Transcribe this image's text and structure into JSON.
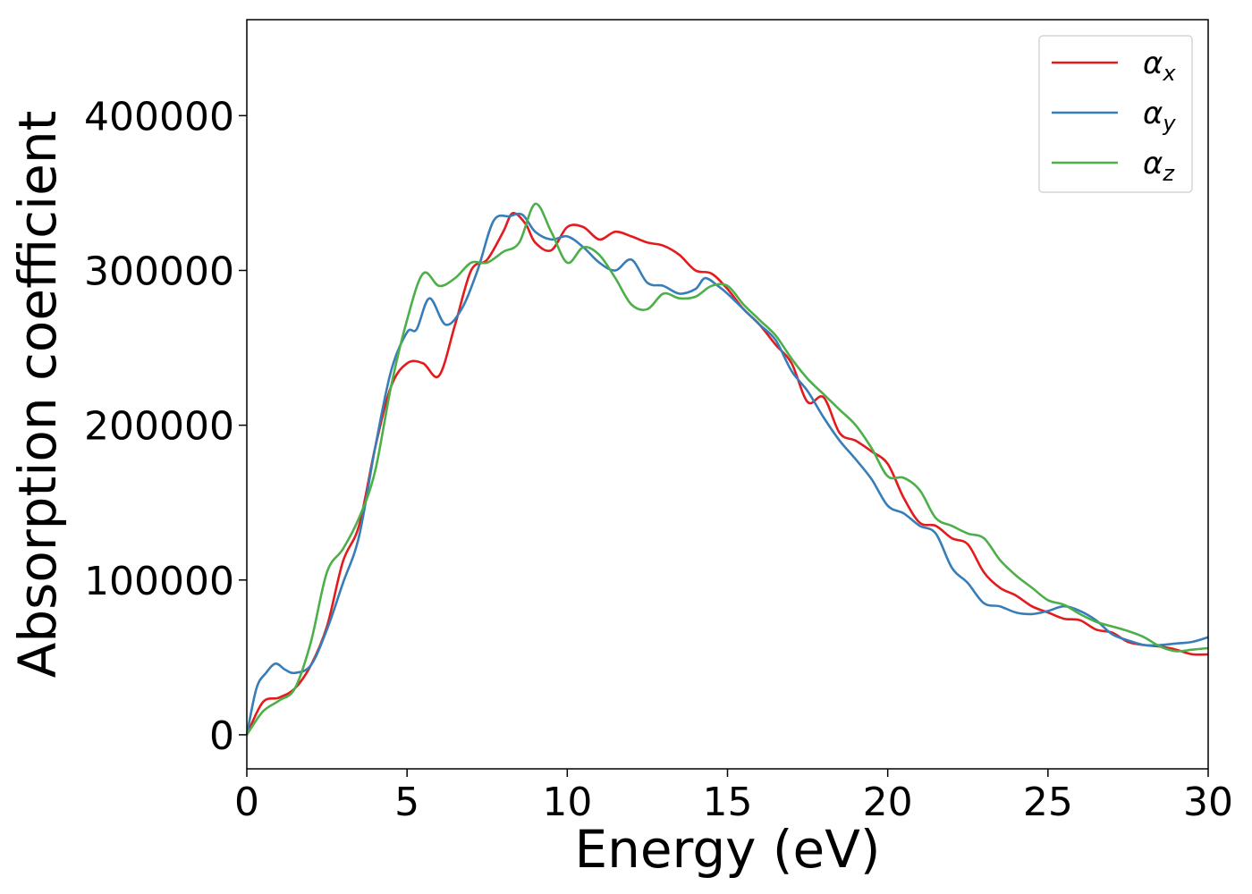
{
  "chart_data": {
    "type": "line",
    "title": "",
    "xlabel": "Energy (eV)",
    "ylabel": "Absorption coefficient",
    "xlim": [
      0,
      30
    ],
    "ylim": [
      -22000,
      462000
    ],
    "xticks": [
      0,
      5,
      10,
      15,
      20,
      25,
      30
    ],
    "yticks": [
      0,
      100000,
      200000,
      300000,
      400000
    ],
    "grid": false,
    "legend": {
      "placement": "top-right"
    },
    "series": [
      {
        "name": "α",
        "subscript": "x",
        "color": "#e41a1c",
        "x": [
          0,
          0.5,
          1,
          1.5,
          2,
          2.5,
          3,
          3.5,
          4,
          4.5,
          5,
          5.5,
          6,
          6.5,
          7,
          7.5,
          8,
          8.3,
          8.7,
          9,
          9.5,
          10,
          10.5,
          11,
          11.5,
          12,
          12.5,
          13,
          13.5,
          14,
          14.5,
          15,
          15.5,
          16,
          16.5,
          17,
          17.5,
          18,
          18.5,
          19,
          19.5,
          20,
          20.5,
          21,
          21.5,
          22,
          22.5,
          23,
          23.5,
          24,
          24.5,
          25,
          25.5,
          26,
          26.5,
          27,
          27.5,
          28,
          28.5,
          29,
          29.5,
          30
        ],
        "y": [
          0,
          21000,
          24000,
          30000,
          45000,
          70000,
          112000,
          135000,
          185000,
          225000,
          240000,
          240000,
          232000,
          265000,
          300000,
          307000,
          325000,
          337000,
          330000,
          318000,
          313000,
          328000,
          328000,
          320000,
          325000,
          322000,
          318000,
          316000,
          310000,
          300000,
          298000,
          288000,
          275000,
          265000,
          252000,
          240000,
          215000,
          218000,
          195000,
          190000,
          183000,
          175000,
          153000,
          137000,
          135000,
          127000,
          123000,
          105000,
          95000,
          90000,
          83000,
          79000,
          75000,
          74000,
          68000,
          66000,
          60000,
          58000,
          57000,
          55000,
          52000,
          52000
        ]
      },
      {
        "name": "α",
        "subscript": "y",
        "color": "#377eb8",
        "x": [
          0,
          0.3,
          0.6,
          0.9,
          1.2,
          1.5,
          2,
          2.5,
          3,
          3.5,
          4,
          4.5,
          5,
          5.3,
          5.7,
          6.2,
          6.7,
          7.2,
          7.7,
          8.2,
          8.6,
          9,
          9.5,
          10,
          10.5,
          11,
          11.5,
          12,
          12.5,
          13,
          13.5,
          14,
          14.3,
          14.7,
          15,
          15.5,
          16,
          16.5,
          17,
          17.5,
          18,
          18.5,
          19,
          19.5,
          20,
          20.5,
          21,
          21.5,
          22,
          22.5,
          23,
          23.5,
          24,
          24.5,
          25,
          25.5,
          26,
          26.5,
          27,
          27.5,
          28,
          28.5,
          29,
          29.5,
          30
        ],
        "y": [
          0,
          30000,
          40000,
          46000,
          42000,
          40000,
          45000,
          68000,
          98000,
          128000,
          185000,
          235000,
          260000,
          262000,
          282000,
          265000,
          275000,
          300000,
          332000,
          335000,
          336000,
          325000,
          320000,
          322000,
          315000,
          305000,
          300000,
          307000,
          292000,
          290000,
          285000,
          288000,
          295000,
          290000,
          285000,
          275000,
          265000,
          255000,
          235000,
          222000,
          205000,
          190000,
          178000,
          165000,
          148000,
          143000,
          135000,
          130000,
          108000,
          98000,
          85000,
          83000,
          79000,
          78000,
          80000,
          83000,
          80000,
          74000,
          65000,
          61000,
          58000,
          58000,
          59000,
          60000,
          63000
        ]
      },
      {
        "name": "α",
        "subscript": "z",
        "color": "#4daf4a",
        "x": [
          0,
          0.5,
          1,
          1.5,
          2,
          2.5,
          3,
          3.5,
          4,
          4.5,
          5,
          5.5,
          6,
          6.5,
          7,
          7.5,
          8,
          8.5,
          9,
          9.5,
          10,
          10.5,
          11,
          11.5,
          12,
          12.5,
          13,
          13.5,
          14,
          14.5,
          15,
          15.5,
          16,
          16.5,
          17,
          17.5,
          18,
          18.5,
          19,
          19.5,
          20,
          20.5,
          21,
          21.5,
          22,
          22.5,
          23,
          23.5,
          24,
          24.5,
          25,
          25.5,
          26,
          26.5,
          27,
          27.5,
          28,
          28.5,
          29,
          29.5,
          30
        ],
        "y": [
          0,
          15000,
          22000,
          30000,
          60000,
          105000,
          120000,
          140000,
          170000,
          225000,
          268000,
          298000,
          290000,
          295000,
          305000,
          305000,
          312000,
          318000,
          343000,
          325000,
          305000,
          315000,
          310000,
          295000,
          278000,
          275000,
          285000,
          282000,
          283000,
          290000,
          290000,
          278000,
          268000,
          258000,
          243000,
          230000,
          220000,
          210000,
          200000,
          185000,
          167000,
          166000,
          158000,
          140000,
          135000,
          130000,
          127000,
          113000,
          103000,
          95000,
          87000,
          84000,
          78000,
          73000,
          70000,
          67000,
          63000,
          57000,
          54000,
          55000,
          56000
        ]
      }
    ]
  }
}
